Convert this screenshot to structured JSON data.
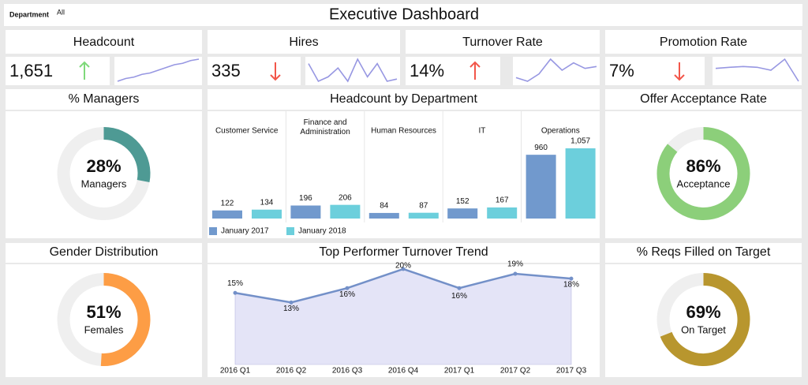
{
  "header": {
    "filter_label": "Department",
    "filter_value": "All",
    "title": "Executive Dashboard"
  },
  "kpis": [
    {
      "title": "Headcount",
      "value": "1,651",
      "arrow": "up",
      "arrow_color": "#7fd97a",
      "sparkline": [
        1,
        2,
        2.5,
        3.5,
        4,
        5,
        6,
        7,
        7.5,
        8.5,
        9
      ]
    },
    {
      "title": "Hires",
      "value": "335",
      "arrow": "down",
      "arrow_color": "#f2564a",
      "sparkline": [
        8,
        4,
        5,
        7,
        4,
        9,
        5,
        8,
        4,
        4.5
      ]
    },
    {
      "title": "Turnover Rate",
      "value": "14%",
      "arrow": "up",
      "arrow_color": "#f2564a",
      "sparkline": [
        3,
        2,
        4,
        8,
        5,
        7,
        5.5,
        6
      ]
    },
    {
      "title": "Promotion Rate",
      "value": "7%",
      "arrow": "down",
      "arrow_color": "#f2564a",
      "sparkline": [
        6,
        6.3,
        6.5,
        6.3,
        5.5,
        8.5,
        2.5
      ]
    }
  ],
  "chart_data": [
    {
      "type": "donut",
      "title": "% Managers",
      "values": [
        28
      ],
      "value_labels": [
        "28%"
      ],
      "label": "Managers",
      "color": "#4e9a94"
    },
    {
      "type": "bar",
      "title": "Headcount by Department",
      "categories": [
        "Customer Service",
        "Finance and Administration",
        "Human Resources",
        "IT",
        "Operations"
      ],
      "series": [
        {
          "name": "January 2017",
          "color": "#7199cd",
          "values": [
            122,
            196,
            84,
            152,
            960
          ]
        },
        {
          "name": "January 2018",
          "color": "#6ccfdc",
          "values": [
            134,
            206,
            87,
            167,
            1057
          ],
          "value_labels": [
            "134",
            "206",
            "87",
            "167",
            "1,057"
          ]
        }
      ]
    },
    {
      "type": "donut",
      "title": "Offer Acceptance Rate",
      "values": [
        86
      ],
      "value_labels": [
        "86%"
      ],
      "label": "Acceptance",
      "color": "#8ccf7a"
    },
    {
      "type": "donut",
      "title": "Gender Distribution",
      "values": [
        51
      ],
      "value_labels": [
        "51%"
      ],
      "label": "Females",
      "color": "#fd9d45"
    },
    {
      "type": "line",
      "title": "Top Performer Turnover Trend",
      "categories": [
        "2016 Q1",
        "2016 Q2",
        "2016 Q3",
        "2016 Q4",
        "2017 Q1",
        "2017 Q2",
        "2017 Q3"
      ],
      "values": [
        15,
        13,
        16,
        20,
        16,
        19,
        18
      ],
      "value_labels": [
        "15%",
        "13%",
        "16%",
        "20%",
        "16%",
        "19%",
        "18%"
      ],
      "color": "#7390c8",
      "fill": "#e4e4f7"
    },
    {
      "type": "donut",
      "title": "% Reqs Filled on Target",
      "values": [
        69
      ],
      "value_labels": [
        "69%"
      ],
      "label": "On Target",
      "color": "#b8962e"
    }
  ]
}
